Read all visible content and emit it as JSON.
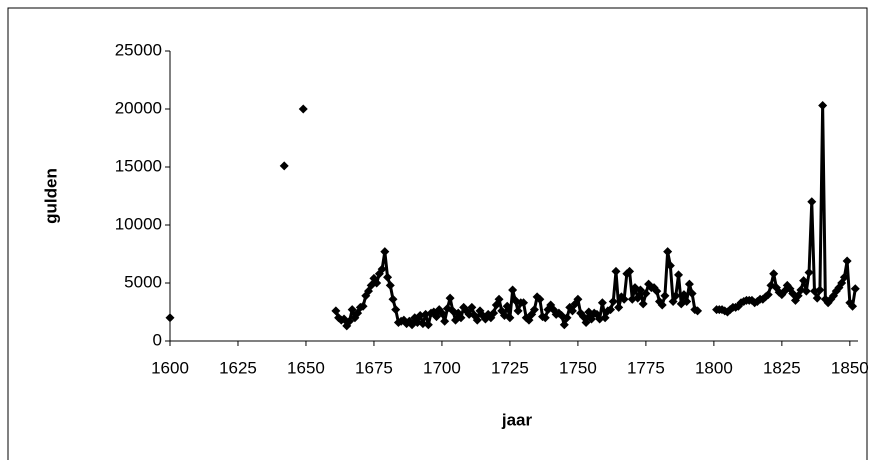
{
  "chart_data": {
    "type": "line",
    "xlabel": "jaar",
    "ylabel": "gulden",
    "x": [
      1600,
      1601,
      1602,
      1603,
      1604,
      1605,
      1606,
      1607,
      1608,
      1609,
      1610,
      1611,
      1612,
      1613,
      1614,
      1615,
      1616,
      1617,
      1618,
      1619,
      1620,
      1621,
      1622,
      1623,
      1624,
      1625,
      1626,
      1627,
      1628,
      1629,
      1630,
      1631,
      1632,
      1633,
      1634,
      1635,
      1636,
      1637,
      1638,
      1639,
      1640,
      1641,
      1642,
      1643,
      1644,
      1645,
      1646,
      1647,
      1648,
      1649,
      1650,
      1651,
      1652,
      1653,
      1654,
      1655,
      1656,
      1657,
      1658,
      1659,
      1660,
      1661,
      1662,
      1663,
      1664,
      1665,
      1666,
      1667,
      1668,
      1669,
      1670,
      1671,
      1672,
      1673,
      1674,
      1675,
      1676,
      1677,
      1678,
      1679,
      1680,
      1681,
      1682,
      1683,
      1684,
      1685,
      1686,
      1687,
      1688,
      1689,
      1690,
      1691,
      1692,
      1693,
      1694,
      1695,
      1696,
      1697,
      1698,
      1699,
      1700,
      1701,
      1702,
      1703,
      1704,
      1705,
      1706,
      1707,
      1708,
      1709,
      1710,
      1711,
      1712,
      1713,
      1714,
      1715,
      1716,
      1717,
      1718,
      1719,
      1720,
      1721,
      1722,
      1723,
      1724,
      1725,
      1726,
      1727,
      1728,
      1729,
      1730,
      1731,
      1732,
      1733,
      1734,
      1735,
      1736,
      1737,
      1738,
      1739,
      1740,
      1741,
      1742,
      1743,
      1744,
      1745,
      1746,
      1747,
      1748,
      1749,
      1750,
      1751,
      1752,
      1753,
      1754,
      1755,
      1756,
      1757,
      1758,
      1759,
      1760,
      1761,
      1762,
      1763,
      1764,
      1765,
      1766,
      1767,
      1768,
      1769,
      1770,
      1771,
      1772,
      1773,
      1774,
      1775,
      1776,
      1777,
      1778,
      1779,
      1780,
      1781,
      1782,
      1783,
      1784,
      1785,
      1786,
      1787,
      1788,
      1789,
      1790,
      1791,
      1792,
      1793,
      1794,
      1795,
      1796,
      1797,
      1798,
      1799,
      1800,
      1801,
      1802,
      1803,
      1804,
      1805,
      1806,
      1807,
      1808,
      1809,
      1810,
      1811,
      1812,
      1813,
      1814,
      1815,
      1816,
      1817,
      1818,
      1819,
      1820,
      1821,
      1822,
      1823,
      1824,
      1825,
      1826,
      1827,
      1828,
      1829,
      1830,
      1831,
      1832,
      1833,
      1834,
      1835,
      1836,
      1837,
      1838,
      1839,
      1840,
      1841,
      1842,
      1843,
      1844,
      1845,
      1846,
      1847,
      1848,
      1849,
      1850,
      1851,
      1852
    ],
    "series": [
      {
        "name": "gulden",
        "color": "#000000",
        "values": [
          2000,
          null,
          null,
          null,
          null,
          null,
          null,
          null,
          null,
          null,
          null,
          null,
          null,
          null,
          null,
          null,
          null,
          null,
          null,
          null,
          null,
          null,
          null,
          null,
          null,
          null,
          null,
          null,
          null,
          null,
          null,
          null,
          null,
          null,
          null,
          null,
          null,
          null,
          null,
          null,
          null,
          null,
          15100,
          null,
          null,
          null,
          null,
          null,
          null,
          20000,
          null,
          null,
          null,
          null,
          null,
          null,
          null,
          null,
          null,
          null,
          null,
          2600,
          2000,
          1800,
          1900,
          1300,
          1700,
          2700,
          2000,
          2400,
          2900,
          3000,
          3900,
          4300,
          4800,
          5400,
          5000,
          5800,
          6200,
          7700,
          5500,
          4800,
          3600,
          2700,
          1600,
          1700,
          1800,
          1500,
          1700,
          1400,
          2000,
          1600,
          2200,
          1500,
          2300,
          1400,
          2400,
          2500,
          2100,
          2700,
          2400,
          1700,
          2800,
          3700,
          2600,
          1800,
          2400,
          2000,
          2900,
          2600,
          2300,
          2900,
          2200,
          1800,
          2600,
          2200,
          1900,
          2300,
          2000,
          2400,
          3100,
          3600,
          2600,
          2200,
          3000,
          2000,
          4400,
          3500,
          2600,
          3300,
          3300,
          2000,
          1800,
          2300,
          2700,
          3800,
          3600,
          2100,
          2000,
          2700,
          3100,
          2700,
          2300,
          2400,
          2200,
          1400,
          2000,
          2900,
          2600,
          3200,
          3600,
          2400,
          2100,
          1600,
          2500,
          1900,
          2400,
          2300,
          1900,
          3300,
          2000,
          2600,
          2700,
          3400,
          6000,
          2900,
          3800,
          3600,
          5800,
          6000,
          3600,
          4600,
          3700,
          4400,
          3200,
          4100,
          4900,
          4600,
          4600,
          4300,
          3400,
          3100,
          3900,
          7700,
          6500,
          3400,
          3900,
          5700,
          3200,
          4000,
          3400,
          4900,
          4100,
          2700,
          2600,
          null,
          null,
          null,
          null,
          null,
          null,
          2700,
          2700,
          2700,
          2600,
          2500,
          2700,
          2900,
          2900,
          3000,
          3300,
          3400,
          3500,
          3500,
          3500,
          3300,
          3400,
          3600,
          3600,
          3800,
          4000,
          4800,
          5800,
          4600,
          4200,
          4000,
          4300,
          4800,
          4500,
          4100,
          3500,
          3900,
          4400,
          5200,
          4300,
          5900,
          12000,
          4300,
          3700,
          4400,
          20300,
          3600,
          3300,
          3600,
          3900,
          4300,
          4600,
          5000,
          5500,
          6900,
          3300,
          3000,
          4500
        ]
      }
    ],
    "xlim": [
      1600,
      1853
    ],
    "xticks": [
      1600,
      1625,
      1650,
      1675,
      1700,
      1725,
      1750,
      1775,
      1800,
      1825,
      1850
    ],
    "ylim": [
      0,
      25000
    ],
    "yticks": [
      0,
      5000,
      10000,
      15000,
      20000,
      25000
    ],
    "grid": false,
    "marker": "diamond"
  }
}
